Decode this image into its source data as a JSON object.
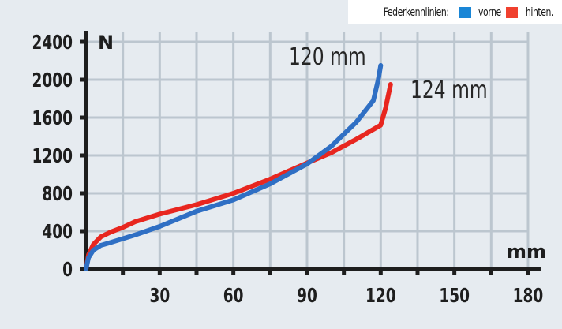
{
  "legend": {
    "title": "Federkennlinien:",
    "items": [
      {
        "label": "vorne",
        "color": "#1a86d6"
      },
      {
        "label": "hinten.",
        "color": "#f0402e"
      }
    ]
  },
  "annotations": {
    "front_travel": "120 mm",
    "rear_travel": "124 mm"
  },
  "chart_data": {
    "type": "line",
    "title": "Federkennlinien",
    "xlabel": "mm",
    "ylabel": "N",
    "xlim": [
      0,
      180
    ],
    "ylim": [
      0,
      2400
    ],
    "xticks": [
      30,
      60,
      90,
      120,
      150,
      180
    ],
    "xtick_labels": [
      "30",
      "60",
      "90",
      "120",
      "150",
      "180"
    ],
    "yticks": [
      0,
      400,
      800,
      1200,
      1600,
      2000,
      2400
    ],
    "ytick_labels": [
      "0",
      "400",
      "800",
      "1200",
      "1600",
      "2000",
      "2400"
    ],
    "grid": true,
    "legend_position": "top-right",
    "series": [
      {
        "name": "vorne",
        "color": "#2f6fc4",
        "x": [
          0,
          1,
          3,
          6,
          10,
          20,
          30,
          45,
          60,
          75,
          90,
          100,
          110,
          117,
          119,
          120
        ],
        "y": [
          0,
          120,
          200,
          250,
          280,
          360,
          450,
          610,
          730,
          900,
          1110,
          1300,
          1550,
          1780,
          2000,
          2150
        ]
      },
      {
        "name": "hinten",
        "color": "#e8261f",
        "x": [
          0,
          1,
          3,
          6,
          10,
          15,
          20,
          30,
          45,
          60,
          75,
          90,
          100,
          110,
          120,
          122,
          124
        ],
        "y": [
          0,
          150,
          260,
          340,
          390,
          440,
          500,
          580,
          680,
          800,
          950,
          1120,
          1230,
          1370,
          1520,
          1700,
          1950
        ]
      }
    ],
    "annotations": [
      {
        "text": "120 mm",
        "series": "vorne"
      },
      {
        "text": "124 mm",
        "series": "hinten"
      }
    ]
  }
}
